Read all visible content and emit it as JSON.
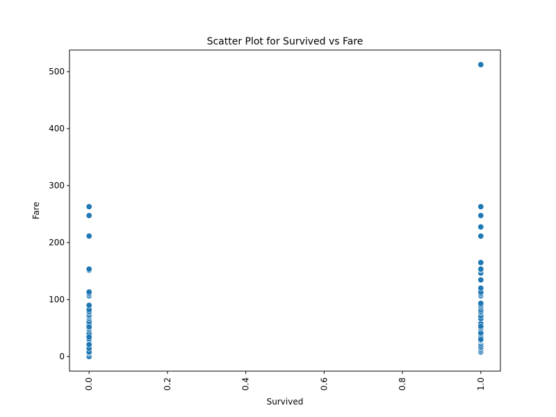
{
  "chart_data": {
    "type": "scatter",
    "title": "Scatter Plot for Survived vs Fare",
    "xlabel": "Survived",
    "ylabel": "Fare",
    "xlim": [
      -0.05,
      1.05
    ],
    "ylim": [
      -25.6,
      537.9
    ],
    "xticks": [
      "0.0",
      "0.2",
      "0.4",
      "0.6",
      "0.8",
      "1.0"
    ],
    "yticks": [
      "0",
      "100",
      "200",
      "300",
      "400",
      "500"
    ],
    "xtick_rotation": "vertical",
    "grid": false,
    "marker_color": "#1f77b4",
    "series": [
      {
        "x": [
          0,
          0,
          0,
          0,
          0,
          0,
          0,
          0,
          0,
          0,
          0,
          0,
          0,
          0,
          0,
          0,
          0,
          0,
          0,
          0,
          0,
          0,
          0,
          0,
          0,
          0,
          0,
          0,
          0,
          0,
          0,
          0,
          0,
          0,
          0,
          0,
          0,
          0,
          0
        ],
        "y": [
          0,
          5,
          7.25,
          8.05,
          10.5,
          13,
          26,
          27.7,
          29,
          31.3,
          40,
          46.9,
          50,
          51.9,
          53.1,
          56.5,
          61.2,
          66.6,
          69.55,
          71,
          73.5,
          77.3,
          79.2,
          82.2,
          90,
          106.4,
          108.9,
          110.9,
          113.3,
          151.6,
          153.5,
          211.5,
          247.5,
          263,
          7.9,
          14.5,
          21,
          34.4,
          52
        ]
      },
      {
        "x": [
          1,
          1,
          1,
          1,
          1,
          1,
          1,
          1,
          1,
          1,
          1,
          1,
          1,
          1,
          1,
          1,
          1,
          1,
          1,
          1,
          1,
          1,
          1,
          1,
          1,
          1,
          1,
          1,
          1,
          1,
          1,
          1,
          1,
          1,
          1,
          1,
          1,
          1,
          1,
          1,
          1,
          1,
          1,
          1,
          1,
          1,
          1,
          1
        ],
        "y": [
          8,
          10.5,
          13,
          15.2,
          16.1,
          19.5,
          23,
          26.55,
          27.7,
          31,
          33.5,
          35.5,
          39.4,
          41.6,
          49.5,
          52.5,
          55.4,
          56.9,
          57.98,
          66.6,
          71.3,
          76.7,
          78.9,
          79.2,
          82.2,
          86.5,
          89.1,
          91.1,
          93.5,
          106.4,
          108.9,
          110.9,
          113.3,
          120,
          134.5,
          146.5,
          151.6,
          153.5,
          164.9,
          211.3,
          227.5,
          247.5,
          262.4,
          263,
          512.3,
          28.5,
          30,
          53.1
        ]
      }
    ]
  }
}
